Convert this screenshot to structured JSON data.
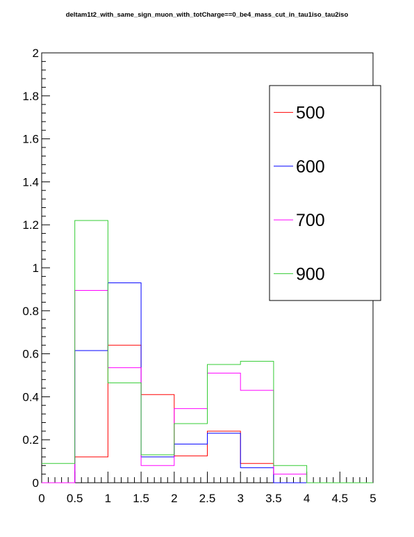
{
  "title": "deltam1t2_with_same_sign_muon_with_totCharge==0_be4_mass_cut_in_tau1iso_tau2iso",
  "chart_data": {
    "type": "histogram-step",
    "title": "deltam1t2_with_same_sign_muon_with_totCharge==0_be4_mass_cut_in_tau1iso_tau2iso",
    "xlabel": "",
    "ylabel": "",
    "xlim": [
      0,
      5
    ],
    "ylim": [
      0,
      2
    ],
    "bin_edges": [
      0,
      0.5,
      1,
      1.5,
      2,
      2.5,
      3,
      3.5,
      4,
      4.5,
      5
    ],
    "x_ticks": [
      "0",
      "0.5",
      "1",
      "1.5",
      "2",
      "2.5",
      "3",
      "3.5",
      "4",
      "4.5",
      "5"
    ],
    "y_ticks": [
      "0",
      "0.2",
      "0.4",
      "0.6",
      "0.8",
      "1",
      "1.2",
      "1.4",
      "1.6",
      "1.8",
      "2"
    ],
    "legend_position": "top-right",
    "grid": false,
    "series": [
      {
        "name": "500",
        "color": "#ff0000",
        "values": [
          0.0,
          0.12,
          0.64,
          0.41,
          0.125,
          0.24,
          0.09,
          0.0,
          0.0,
          0.0
        ]
      },
      {
        "name": "600",
        "color": "#0000ff",
        "values": [
          0.0,
          0.615,
          0.93,
          0.12,
          0.18,
          0.23,
          0.07,
          0.0,
          0.0,
          0.0
        ]
      },
      {
        "name": "700",
        "color": "#ff00ff",
        "values": [
          0.0,
          0.895,
          0.535,
          0.08,
          0.345,
          0.51,
          0.43,
          0.04,
          0.0,
          0.0
        ]
      },
      {
        "name": "900",
        "color": "#33cc33",
        "values": [
          0.09,
          1.22,
          0.465,
          0.13,
          0.275,
          0.55,
          0.565,
          0.08,
          0.0,
          0.0
        ]
      }
    ]
  }
}
